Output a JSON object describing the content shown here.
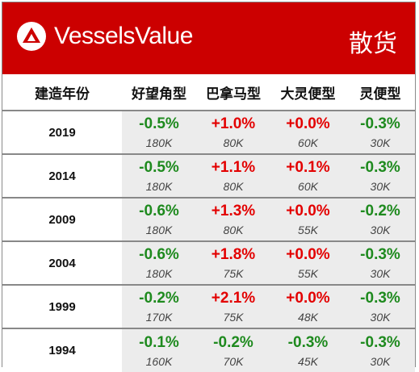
{
  "header": {
    "brand": "VesselsValue",
    "category": "散货",
    "logo_icon": "vesselsvalue-logo-icon",
    "banner_color": "#cc0000"
  },
  "table": {
    "columns": [
      "建造年份",
      "好望角型",
      "巴拿马型",
      "大灵便型",
      "灵便型"
    ],
    "rows": [
      {
        "year": "2019",
        "cells": [
          {
            "change": "-0.5%",
            "size": "180K",
            "color": "green"
          },
          {
            "change": "+1.0%",
            "size": "80K",
            "color": "red"
          },
          {
            "change": "+0.0%",
            "size": "60K",
            "color": "red"
          },
          {
            "change": "-0.3%",
            "size": "30K",
            "color": "green"
          }
        ]
      },
      {
        "year": "2014",
        "cells": [
          {
            "change": "-0.5%",
            "size": "180K",
            "color": "green"
          },
          {
            "change": "+1.1%",
            "size": "80K",
            "color": "red"
          },
          {
            "change": "+0.1%",
            "size": "60K",
            "color": "red"
          },
          {
            "change": "-0.3%",
            "size": "30K",
            "color": "green"
          }
        ]
      },
      {
        "year": "2009",
        "cells": [
          {
            "change": "-0.6%",
            "size": "180K",
            "color": "green"
          },
          {
            "change": "+1.3%",
            "size": "80K",
            "color": "red"
          },
          {
            "change": "+0.0%",
            "size": "55K",
            "color": "red"
          },
          {
            "change": "-0.2%",
            "size": "30K",
            "color": "green"
          }
        ]
      },
      {
        "year": "2004",
        "cells": [
          {
            "change": "-0.6%",
            "size": "180K",
            "color": "green"
          },
          {
            "change": "+1.8%",
            "size": "75K",
            "color": "red"
          },
          {
            "change": "+0.0%",
            "size": "55K",
            "color": "red"
          },
          {
            "change": "-0.3%",
            "size": "30K",
            "color": "green"
          }
        ]
      },
      {
        "year": "1999",
        "cells": [
          {
            "change": "-0.2%",
            "size": "170K",
            "color": "green"
          },
          {
            "change": "+2.1%",
            "size": "75K",
            "color": "red"
          },
          {
            "change": "+0.0%",
            "size": "48K",
            "color": "red"
          },
          {
            "change": "-0.3%",
            "size": "30K",
            "color": "green"
          }
        ]
      },
      {
        "year": "1994",
        "cells": [
          {
            "change": "-0.1%",
            "size": "160K",
            "color": "green"
          },
          {
            "change": "-0.2%",
            "size": "70K",
            "color": "green"
          },
          {
            "change": "-0.3%",
            "size": "45K",
            "color": "green"
          },
          {
            "change": "-0.3%",
            "size": "30K",
            "color": "green"
          }
        ]
      }
    ]
  }
}
